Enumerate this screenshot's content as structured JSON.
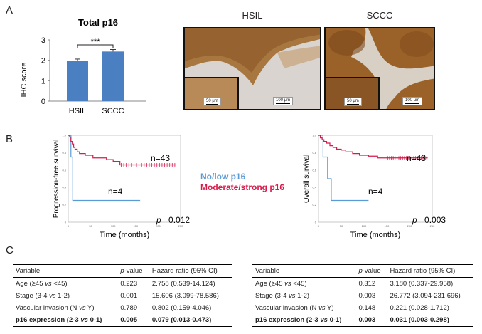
{
  "panels": {
    "a": "A",
    "b": "B",
    "c": "C"
  },
  "chart_data": [
    {
      "type": "bar",
      "title": "Total p16",
      "ylabel": "IHC score",
      "categories": [
        "HSIL",
        "SCCC"
      ],
      "values": [
        1.97,
        2.43
      ],
      "errors": [
        0.09,
        0.1
      ],
      "ylim": [
        0,
        3
      ],
      "yticks": [
        "0",
        "1",
        "2",
        "3"
      ],
      "significance": "***",
      "color": "#4a7fc1"
    },
    {
      "type": "line",
      "ylabel": "Progression-free survival",
      "xlabel": "Time (months)",
      "xlim": [
        0,
        250
      ],
      "ylim": [
        0,
        1
      ],
      "xticks": [
        "0",
        "50",
        "100",
        "150",
        "200",
        "250"
      ],
      "yticks": [
        "0",
        "0.2",
        "0.4",
        "0.6",
        "0.8",
        "1.0"
      ],
      "series": [
        {
          "name": "No/low p16",
          "color": "#5b9bd5",
          "n_label": "n=4",
          "x": [
            0,
            6,
            6,
            10,
            10,
            160
          ],
          "y": [
            1.0,
            1.0,
            0.75,
            0.75,
            0.25,
            0.25
          ]
        },
        {
          "name": "Moderate/strong p16",
          "color": "#d81b4a",
          "n_label": "n=43",
          "x": [
            0,
            3,
            6,
            9,
            12,
            15,
            20,
            25,
            30,
            38,
            45,
            55,
            70,
            85,
            100,
            115,
            240
          ],
          "y": [
            1.0,
            0.98,
            0.93,
            0.9,
            0.86,
            0.84,
            0.81,
            0.79,
            0.79,
            0.77,
            0.77,
            0.74,
            0.74,
            0.72,
            0.7,
            0.66,
            0.66
          ]
        }
      ],
      "pvalue": "= 0.012"
    },
    {
      "type": "line",
      "ylabel": "Overall survival",
      "xlabel": "Time (months)",
      "xlim": [
        0,
        250
      ],
      "ylim": [
        0,
        1
      ],
      "xticks": [
        "0",
        "50",
        "100",
        "150",
        "200",
        "250"
      ],
      "yticks": [
        "0",
        "0.2",
        "0.4",
        "0.6",
        "0.8",
        "1.0"
      ],
      "series": [
        {
          "name": "No/low p16",
          "color": "#5b9bd5",
          "n_label": "n=4",
          "x": [
            0,
            10,
            10,
            20,
            20,
            28,
            28,
            110
          ],
          "y": [
            1.0,
            1.0,
            0.75,
            0.75,
            0.5,
            0.5,
            0.25,
            0.25
          ]
        },
        {
          "name": "Moderate/strong p16",
          "color": "#d81b4a",
          "n_label": "n=43",
          "x": [
            0,
            4,
            8,
            12,
            18,
            25,
            32,
            40,
            50,
            60,
            75,
            90,
            110,
            130,
            150,
            240
          ],
          "y": [
            1.0,
            0.97,
            0.95,
            0.93,
            0.91,
            0.88,
            0.86,
            0.84,
            0.83,
            0.81,
            0.79,
            0.77,
            0.76,
            0.74,
            0.74,
            0.74
          ]
        }
      ],
      "pvalue": "= 0.003"
    }
  ],
  "micrographs": [
    {
      "title": "HSIL",
      "scale_main": "100 μm",
      "scale_inset": "50 μm"
    },
    {
      "title": "SCCC",
      "scale_main": "100 μm",
      "scale_inset": "50 μm"
    }
  ],
  "tables": [
    {
      "headers": {
        "variable": "Variable",
        "p_pre": "p",
        "p_post": "-value",
        "hr": "Hazard ratio (95% CI)"
      },
      "rows": [
        {
          "pre": "Age (≥45 ",
          "vs": "vs",
          "post": " <45)",
          "p": "0.223",
          "hr": "2.758 (0.539-14.124)"
        },
        {
          "pre": "Stage (3-4 ",
          "vs": "vs",
          "post": " 1-2)",
          "p": "0.001",
          "hr": "15.606 (3.099-78.586)"
        },
        {
          "pre": "Vascular invasion (N ",
          "vs": "vs",
          "post": " Y)",
          "p": "0.789",
          "hr": "0.802 (0.159-4.046)"
        },
        {
          "pre": "p16 expression (2-3 ",
          "vs": "vs",
          "post": " 0-1)",
          "p": "0.005",
          "hr": "0.079 (0.013-0.473)"
        }
      ]
    },
    {
      "headers": {
        "variable": "Variable",
        "p_pre": "p",
        "p_post": "-value",
        "hr": "Hazard ratio (95% CI)"
      },
      "rows": [
        {
          "pre": "Age (≥45 ",
          "vs": "vs",
          "post": " <45)",
          "p": "0.312",
          "hr": "3.180 (0.337-29.958)"
        },
        {
          "pre": "Stage (3-4 ",
          "vs": "vs",
          "post": " 1-2)",
          "p": "0.003",
          "hr": "26.772 (3.094-231.696)"
        },
        {
          "pre": "Vascular invasion (N ",
          "vs": "vs",
          "post": " Y)",
          "p": "0.148",
          "hr": "0.221 (0.028-1.712)"
        },
        {
          "pre": "p16 expression (2-3 ",
          "vs": "vs",
          "post": " 0-1)",
          "p": "0.003",
          "hr": "0.031 (0.003-0.298)"
        }
      ]
    }
  ]
}
